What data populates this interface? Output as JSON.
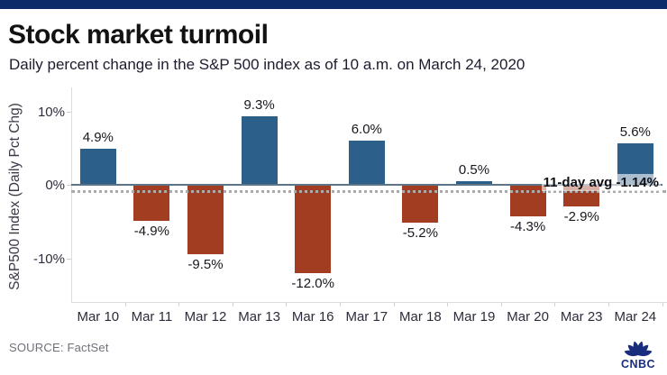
{
  "header": {
    "title": "Stock market turmoil",
    "subtitle": "Daily percent change in the S&P 500 index as of 10 a.m. on March 24, 2020"
  },
  "chart_data": {
    "type": "bar",
    "title": "Stock market turmoil",
    "subtitle": "Daily percent change in the S&P 500 index as of 10 a.m. on March 24, 2020",
    "categories": [
      "Mar 10",
      "Mar 11",
      "Mar 12",
      "Mar 13",
      "Mar 16",
      "Mar 17",
      "Mar 18",
      "Mar 19",
      "Mar 20",
      "Mar 23",
      "Mar 24"
    ],
    "values": [
      4.9,
      -4.9,
      -9.5,
      9.3,
      -12.0,
      6.0,
      -5.2,
      0.5,
      -4.3,
      -2.9,
      5.6
    ],
    "value_labels": [
      "4.9%",
      "-4.9%",
      "-9.5%",
      "9.3%",
      "-12.0%",
      "6.0%",
      "-5.2%",
      "0.5%",
      "-4.3%",
      "-2.9%",
      "5.6%"
    ],
    "ylabel": "S&P500 Index (Daily Pct Chg)",
    "xlabel": "",
    "yticks": [
      {
        "label": "10%",
        "value": 10
      },
      {
        "label": "0%",
        "value": 0
      },
      {
        "label": "-10%",
        "value": -10
      }
    ],
    "ylim": [
      -16,
      13
    ],
    "grid": false,
    "legend": false,
    "annotation": {
      "text": "11-day avg -1.14%",
      "value": -1.14,
      "style": "dotted-line"
    },
    "colors": {
      "positive": "#2D5F8B",
      "negative": "#A33D22",
      "zero_line": "#5D7486",
      "dotted_line": "#ABABAB"
    }
  },
  "footer": {
    "source": "SOURCE: FactSet",
    "logo_text": "CNBC"
  },
  "theme": {
    "accent_bar": "#0C2B68",
    "logo_navy": "#1A2C7D"
  }
}
